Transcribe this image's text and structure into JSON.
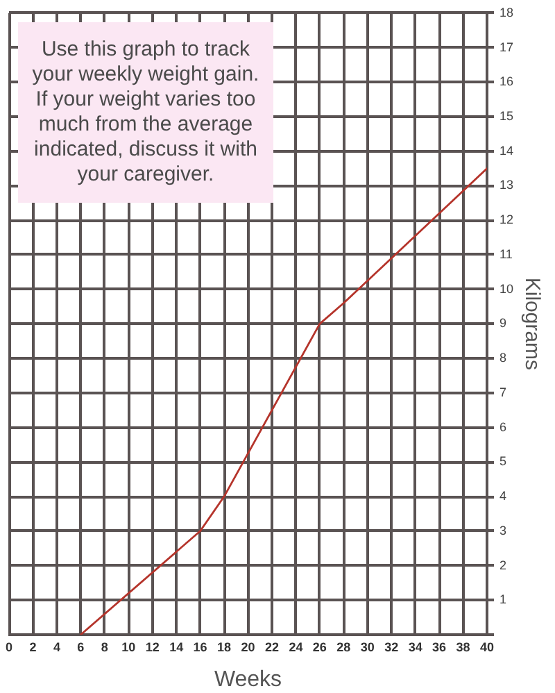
{
  "chart_data": {
    "type": "line",
    "xlabel": "Weeks",
    "ylabel": "Kilograms",
    "annotations": [
      "Use this graph to track your weekly weight gain. If your weight varies too much from the average indicated, discuss it with your caregiver."
    ],
    "x": [
      6,
      16,
      18,
      26,
      28,
      32,
      40
    ],
    "series": [
      {
        "color": "#b5342b",
        "values": [
          0,
          3,
          4,
          9,
          9.6,
          10.9,
          13.5
        ]
      }
    ],
    "xlim": [
      0,
      40
    ],
    "ylim": [
      0,
      18
    ],
    "xticks": [
      0,
      2,
      4,
      6,
      8,
      10,
      12,
      14,
      16,
      18,
      20,
      22,
      24,
      26,
      28,
      30,
      32,
      34,
      36,
      38,
      40
    ],
    "yticks": [
      {
        "value": 0,
        "label": null
      },
      1,
      2,
      3,
      4,
      5,
      6,
      7,
      8,
      9,
      10,
      11,
      12,
      13,
      14,
      15,
      16,
      17,
      18
    ],
    "grid": true,
    "marker": "none",
    "line_style": "solid"
  }
}
